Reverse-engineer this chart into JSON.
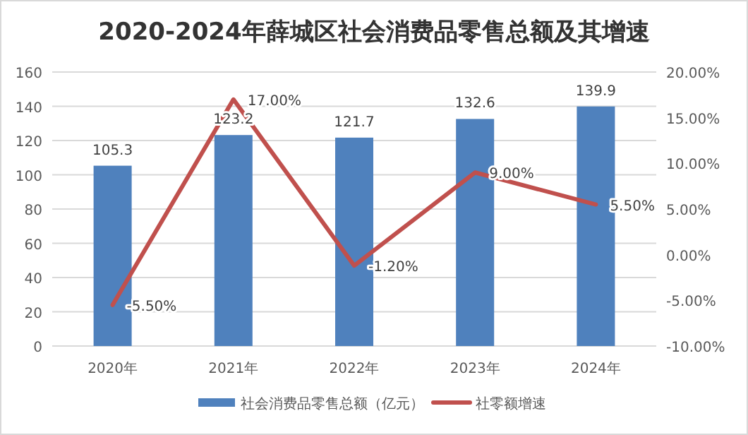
{
  "chart_data": {
    "type": "bar",
    "title": "2020-2024年薛城区社会消费品零售总额及其增速",
    "categories": [
      "2020年",
      "2021年",
      "2022年",
      "2023年",
      "2024年"
    ],
    "series": [
      {
        "name": "社会消费品零售总额（亿元）",
        "color": "#4f81bd",
        "values": [
          105.3,
          123.2,
          121.7,
          132.6,
          139.9
        ]
      },
      {
        "name": "社零额增速",
        "type": "line",
        "axis": "y2",
        "color": "#c0504d",
        "values": [
          -5.5,
          17.0,
          -1.2,
          9.0,
          5.5
        ],
        "value_labels": [
          "-5.50%",
          "17.00%",
          "-1.20%",
          "9.00%",
          "5.50%"
        ]
      }
    ],
    "data_labels": true,
    "ylim": [
      0,
      160
    ],
    "yticks": [
      0,
      20,
      40,
      60,
      80,
      100,
      120,
      140,
      160
    ],
    "y2lim": [
      -10,
      20
    ],
    "y2ticks": [
      {
        "value": -10,
        "label": "-10.00%"
      },
      {
        "value": -5,
        "label": "-5.00%"
      },
      {
        "value": 0,
        "label": "0.00%"
      },
      {
        "value": 5,
        "label": "5.00%"
      },
      {
        "value": 10,
        "label": "10.00%"
      },
      {
        "value": 15,
        "label": "15.00%"
      },
      {
        "value": 20,
        "label": "20.00%"
      }
    ],
    "grid": "y",
    "legend": "bottom",
    "marker": "none",
    "line_style": "solid"
  }
}
